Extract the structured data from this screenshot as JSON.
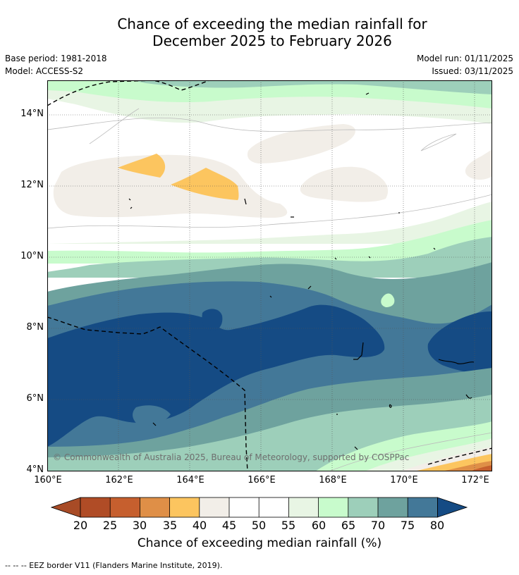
{
  "title_line1": "Chance of exceeding the median rainfall for",
  "title_line2": "December 2025 to February 2026",
  "meta": {
    "base_period": "Base period: 1981-2018",
    "model": "Model: ACCESS-S2",
    "model_run": "Model run: 01/11/2025",
    "issued": "Issued: 03/11/2025"
  },
  "axes": {
    "y_ticks": [
      "14°N",
      "12°N",
      "10°N",
      "8°N",
      "6°N",
      "4°N"
    ],
    "x_ticks": [
      "160°E",
      "162°E",
      "164°E",
      "166°E",
      "168°E",
      "170°E",
      "172°E"
    ]
  },
  "copyright": "© Commonwealth of Australia 2025, Bureau of Meteorology, supported by COSPPac",
  "colorbar": {
    "ticks": [
      "20",
      "25",
      "30",
      "35",
      "40",
      "45",
      "50",
      "55",
      "60",
      "65",
      "70",
      "75",
      "80"
    ],
    "title": "Chance of exceeding median rainfall (%)"
  },
  "footnote": "--  --  -- EEZ border V11 (Flanders Marine Institute, 2019).",
  "colors": {
    "c20": "#a84b26",
    "c25": "#c65f2e",
    "c30": "#df8f47",
    "c35": "#fcc55f",
    "c40": "#f2eee8",
    "c45": "#ffffff",
    "c50": "#ffffff",
    "c55": "#e8f5e4",
    "c60": "#c8fbcc",
    "c65": "#9dcfba",
    "c70": "#6ea29e",
    "c75": "#437898",
    "c80": "#154b84"
  }
}
